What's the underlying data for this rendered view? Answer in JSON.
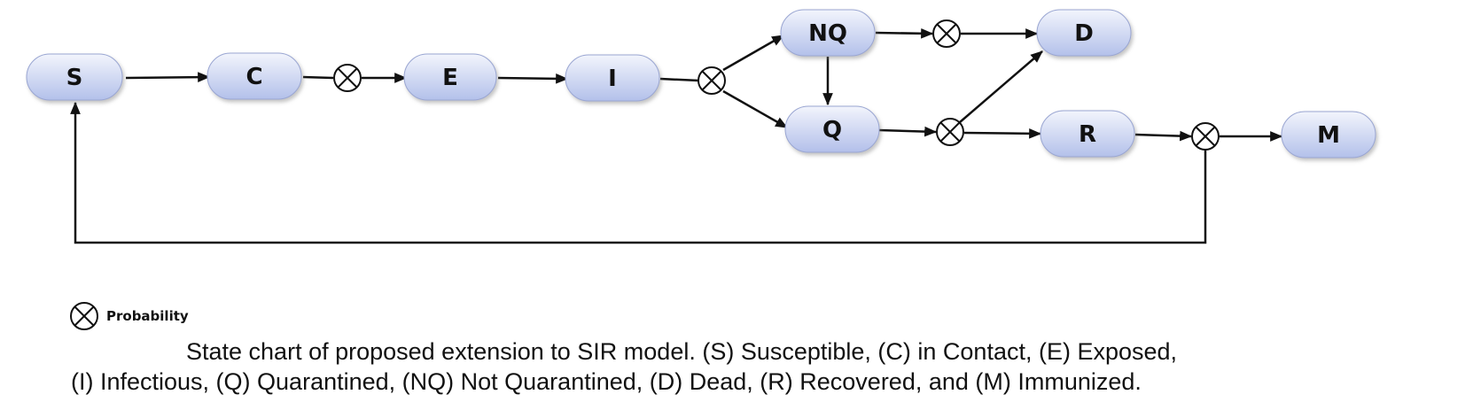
{
  "diagram": {
    "states": {
      "s": "S",
      "c": "C",
      "e": "E",
      "i": "I",
      "nq": "NQ",
      "q": "Q",
      "d": "D",
      "r": "R",
      "m": "M"
    },
    "probability_node_icon": "circle-x-icon",
    "colors": {
      "node_fill_top": "#eef1fb",
      "node_fill_bottom": "#b7c3eb",
      "node_stroke": "#8f9cc9",
      "edge": "#111111"
    }
  },
  "legend": {
    "icon": "circle-x-icon",
    "label": "Probability"
  },
  "caption": {
    "line1": "State chart of proposed extension to SIR model. (S) Susceptible, (C) in Contact, (E) Exposed,",
    "line2": "(I) Infectious, (Q) Quarantined, (NQ) Not Quarantined, (D) Dead, (R) Recovered, and (M) Immunized."
  }
}
